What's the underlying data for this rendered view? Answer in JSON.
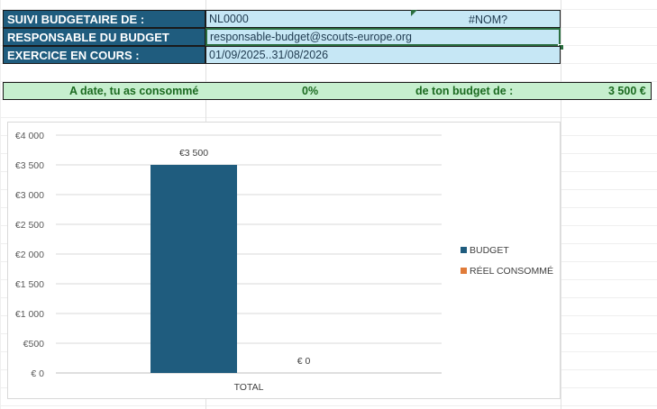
{
  "header_rows": [
    {
      "label": "SUIVI BUDGETAIRE DE :",
      "value": "NL0000",
      "extra": "#NOM?"
    },
    {
      "label": "RESPONSABLE DU BUDGET",
      "value": "responsable-budget@scouts-europe.org"
    },
    {
      "label": "EXERCICE EN COURS :",
      "value": "01/09/2025..31/08/2026"
    }
  ],
  "summary": {
    "prefix": "A date, tu as consommé",
    "percent": "0%",
    "middle": "de ton budget de :",
    "amount": "3 500 €"
  },
  "colors": {
    "header_bg": "#1f5c7e",
    "value_bg": "#c6e7f5",
    "summary_bg": "#c6efce",
    "budget": "#1f5c7e",
    "reel": "#e07b39"
  },
  "chart_data": {
    "type": "bar",
    "categories": [
      "TOTAL"
    ],
    "series": [
      {
        "name": "BUDGET",
        "values": [
          3500
        ],
        "label": "€3 500"
      },
      {
        "name": "RÉEL CONSOMMÉ",
        "values": [
          0
        ],
        "label": "€ 0"
      }
    ],
    "ylim": [
      0,
      4000
    ],
    "yticks": [
      "€ 0",
      "€500",
      "€1 000",
      "€1 500",
      "€2 000",
      "€2 500",
      "€3 000",
      "€3 500",
      "€4 000"
    ],
    "legend": "right",
    "grid": true
  }
}
